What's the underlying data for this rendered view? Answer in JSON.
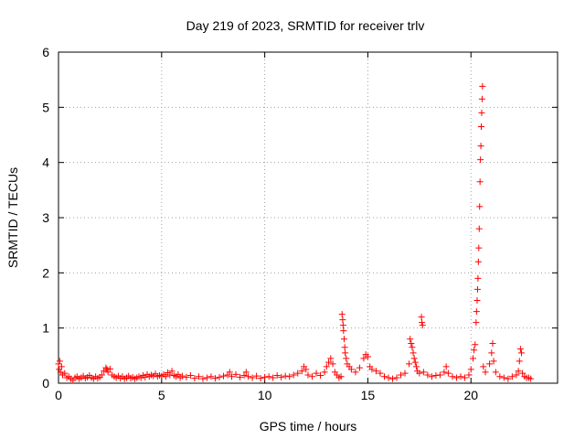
{
  "chart_data": {
    "type": "scatter",
    "title": "Day 219 of 2023, SRMTID for receiver trlv",
    "xlabel": "GPS time / hours",
    "ylabel": "SRMTID / TECUs",
    "xlim": [
      0,
      24.2
    ],
    "ylim": [
      0,
      6
    ],
    "xticks": [
      0,
      5,
      10,
      15,
      20
    ],
    "yticks": [
      0,
      1,
      2,
      3,
      4,
      5,
      6
    ],
    "xtick_labels": [
      "0",
      "5",
      "10",
      "15",
      "20"
    ],
    "ytick_labels": [
      "0",
      "1",
      "2",
      "3",
      "4",
      "5",
      "6"
    ],
    "grid": true,
    "marker": "plus",
    "color": "#ff0000",
    "series": [
      {
        "name": "trlv",
        "points": [
          [
            0.0,
            0.35
          ],
          [
            0.03,
            0.25
          ],
          [
            0.06,
            0.4
          ],
          [
            0.1,
            0.2
          ],
          [
            0.15,
            0.3
          ],
          [
            0.2,
            0.15
          ],
          [
            0.3,
            0.18
          ],
          [
            0.4,
            0.1
          ],
          [
            0.5,
            0.12
          ],
          [
            0.6,
            0.08
          ],
          [
            0.7,
            0.05
          ],
          [
            0.8,
            0.1
          ],
          [
            0.9,
            0.12
          ],
          [
            1.0,
            0.08
          ],
          [
            1.1,
            0.1
          ],
          [
            1.2,
            0.13
          ],
          [
            1.3,
            0.09
          ],
          [
            1.4,
            0.11
          ],
          [
            1.5,
            0.14
          ],
          [
            1.6,
            0.1
          ],
          [
            1.7,
            0.08
          ],
          [
            1.8,
            0.12
          ],
          [
            1.9,
            0.09
          ],
          [
            2.0,
            0.11
          ],
          [
            2.1,
            0.15
          ],
          [
            2.2,
            0.22
          ],
          [
            2.3,
            0.28
          ],
          [
            2.35,
            0.25
          ],
          [
            2.4,
            0.2
          ],
          [
            2.5,
            0.26
          ],
          [
            2.6,
            0.15
          ],
          [
            2.7,
            0.12
          ],
          [
            2.8,
            0.1
          ],
          [
            2.9,
            0.13
          ],
          [
            3.0,
            0.09
          ],
          [
            3.1,
            0.12
          ],
          [
            3.2,
            0.08
          ],
          [
            3.3,
            0.1
          ],
          [
            3.4,
            0.13
          ],
          [
            3.5,
            0.09
          ],
          [
            3.6,
            0.11
          ],
          [
            3.7,
            0.08
          ],
          [
            3.8,
            0.1
          ],
          [
            3.9,
            0.12
          ],
          [
            4.0,
            0.1
          ],
          [
            4.1,
            0.14
          ],
          [
            4.2,
            0.11
          ],
          [
            4.3,
            0.16
          ],
          [
            4.4,
            0.12
          ],
          [
            4.5,
            0.15
          ],
          [
            4.6,
            0.13
          ],
          [
            4.7,
            0.17
          ],
          [
            4.8,
            0.12
          ],
          [
            4.9,
            0.14
          ],
          [
            5.0,
            0.13
          ],
          [
            5.1,
            0.16
          ],
          [
            5.2,
            0.12
          ],
          [
            5.3,
            0.19
          ],
          [
            5.4,
            0.15
          ],
          [
            5.5,
            0.22
          ],
          [
            5.6,
            0.14
          ],
          [
            5.7,
            0.12
          ],
          [
            5.8,
            0.16
          ],
          [
            5.9,
            0.1
          ],
          [
            6.0,
            0.13
          ],
          [
            6.2,
            0.11
          ],
          [
            6.4,
            0.14
          ],
          [
            6.6,
            0.09
          ],
          [
            6.8,
            0.12
          ],
          [
            7.0,
            0.08
          ],
          [
            7.2,
            0.1
          ],
          [
            7.4,
            0.12
          ],
          [
            7.6,
            0.09
          ],
          [
            7.8,
            0.11
          ],
          [
            8.0,
            0.13
          ],
          [
            8.2,
            0.15
          ],
          [
            8.3,
            0.2
          ],
          [
            8.4,
            0.12
          ],
          [
            8.6,
            0.16
          ],
          [
            8.8,
            0.11
          ],
          [
            9.0,
            0.14
          ],
          [
            9.1,
            0.2
          ],
          [
            9.2,
            0.12
          ],
          [
            9.4,
            0.1
          ],
          [
            9.6,
            0.13
          ],
          [
            9.8,
            0.09
          ],
          [
            10.0,
            0.11
          ],
          [
            10.2,
            0.12
          ],
          [
            10.4,
            0.1
          ],
          [
            10.6,
            0.14
          ],
          [
            10.8,
            0.11
          ],
          [
            11.0,
            0.13
          ],
          [
            11.2,
            0.12
          ],
          [
            11.4,
            0.15
          ],
          [
            11.6,
            0.18
          ],
          [
            11.8,
            0.22
          ],
          [
            11.9,
            0.3
          ],
          [
            12.0,
            0.25
          ],
          [
            12.1,
            0.15
          ],
          [
            12.3,
            0.12
          ],
          [
            12.5,
            0.18
          ],
          [
            12.7,
            0.14
          ],
          [
            12.9,
            0.2
          ],
          [
            13.0,
            0.3
          ],
          [
            13.1,
            0.38
          ],
          [
            13.2,
            0.45
          ],
          [
            13.3,
            0.35
          ],
          [
            13.4,
            0.2
          ],
          [
            13.5,
            0.15
          ],
          [
            13.6,
            0.1
          ],
          [
            13.7,
            0.12
          ],
          [
            13.75,
            1.25
          ],
          [
            13.78,
            1.15
          ],
          [
            13.8,
            1.05
          ],
          [
            13.82,
            0.95
          ],
          [
            13.85,
            0.8
          ],
          [
            13.88,
            0.65
          ],
          [
            13.9,
            0.55
          ],
          [
            13.95,
            0.45
          ],
          [
            14.0,
            0.35
          ],
          [
            14.1,
            0.3
          ],
          [
            14.2,
            0.25
          ],
          [
            14.4,
            0.2
          ],
          [
            14.6,
            0.28
          ],
          [
            14.8,
            0.45
          ],
          [
            14.9,
            0.52
          ],
          [
            15.0,
            0.48
          ],
          [
            15.1,
            0.3
          ],
          [
            15.2,
            0.25
          ],
          [
            15.4,
            0.22
          ],
          [
            15.6,
            0.18
          ],
          [
            15.8,
            0.12
          ],
          [
            16.0,
            0.1
          ],
          [
            16.2,
            0.08
          ],
          [
            16.4,
            0.1
          ],
          [
            16.6,
            0.15
          ],
          [
            16.8,
            0.18
          ],
          [
            17.0,
            0.35
          ],
          [
            17.05,
            0.8
          ],
          [
            17.1,
            0.72
          ],
          [
            17.15,
            0.65
          ],
          [
            17.2,
            0.55
          ],
          [
            17.25,
            0.45
          ],
          [
            17.3,
            0.38
          ],
          [
            17.35,
            0.3
          ],
          [
            17.4,
            0.22
          ],
          [
            17.5,
            0.18
          ],
          [
            17.6,
            1.2
          ],
          [
            17.62,
            1.1
          ],
          [
            17.65,
            1.05
          ],
          [
            17.7,
            0.2
          ],
          [
            17.9,
            0.15
          ],
          [
            18.1,
            0.12
          ],
          [
            18.3,
            0.14
          ],
          [
            18.5,
            0.15
          ],
          [
            18.7,
            0.2
          ],
          [
            18.8,
            0.3
          ],
          [
            18.9,
            0.18
          ],
          [
            19.1,
            0.12
          ],
          [
            19.3,
            0.1
          ],
          [
            19.5,
            0.12
          ],
          [
            19.7,
            0.1
          ],
          [
            19.9,
            0.15
          ],
          [
            20.0,
            0.25
          ],
          [
            20.1,
            0.45
          ],
          [
            20.15,
            0.6
          ],
          [
            20.2,
            0.7
          ],
          [
            20.25,
            1.1
          ],
          [
            20.27,
            1.3
          ],
          [
            20.3,
            1.5
          ],
          [
            20.32,
            1.7
          ],
          [
            20.34,
            1.9
          ],
          [
            20.36,
            2.2
          ],
          [
            20.38,
            2.45
          ],
          [
            20.4,
            2.8
          ],
          [
            20.42,
            3.2
          ],
          [
            20.44,
            3.65
          ],
          [
            20.46,
            4.05
          ],
          [
            20.48,
            4.3
          ],
          [
            20.5,
            4.65
          ],
          [
            20.52,
            4.9
          ],
          [
            20.54,
            5.15
          ],
          [
            20.56,
            5.38
          ],
          [
            20.6,
            0.3
          ],
          [
            20.7,
            0.2
          ],
          [
            20.9,
            0.35
          ],
          [
            21.0,
            0.55
          ],
          [
            21.05,
            0.72
          ],
          [
            21.1,
            0.4
          ],
          [
            21.2,
            0.2
          ],
          [
            21.4,
            0.12
          ],
          [
            21.6,
            0.1
          ],
          [
            21.8,
            0.08
          ],
          [
            22.0,
            0.12
          ],
          [
            22.2,
            0.15
          ],
          [
            22.3,
            0.22
          ],
          [
            22.35,
            0.4
          ],
          [
            22.4,
            0.62
          ],
          [
            22.45,
            0.55
          ],
          [
            22.5,
            0.18
          ],
          [
            22.6,
            0.12
          ],
          [
            22.7,
            0.1
          ],
          [
            22.8,
            0.1
          ],
          [
            22.9,
            0.08
          ]
        ]
      }
    ]
  }
}
